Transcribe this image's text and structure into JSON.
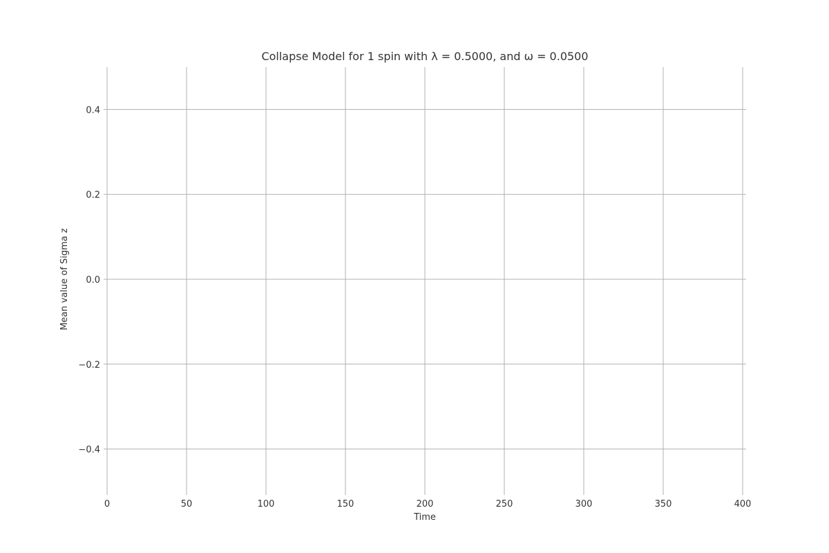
{
  "chart_data": {
    "type": "line",
    "title": "Collapse Model for 1 spin with λ = 0.5000, and ω = 0.0500",
    "xlabel": "Time",
    "ylabel": "Mean value of Sigma z",
    "xlim": [
      0,
      400
    ],
    "ylim": [
      -0.5,
      0.5
    ],
    "xticks": [
      0,
      50,
      100,
      150,
      200,
      250,
      300,
      350,
      400
    ],
    "xtick_labels": [
      "0",
      "50",
      "100",
      "150",
      "200",
      "250",
      "300",
      "350",
      "400"
    ],
    "yticks": [
      -0.4,
      -0.2,
      0.0,
      0.2,
      0.4
    ],
    "ytick_labels": [
      "−0.4",
      "−0.2",
      "0.0",
      "0.2",
      "0.4"
    ],
    "grid": true,
    "series": []
  }
}
